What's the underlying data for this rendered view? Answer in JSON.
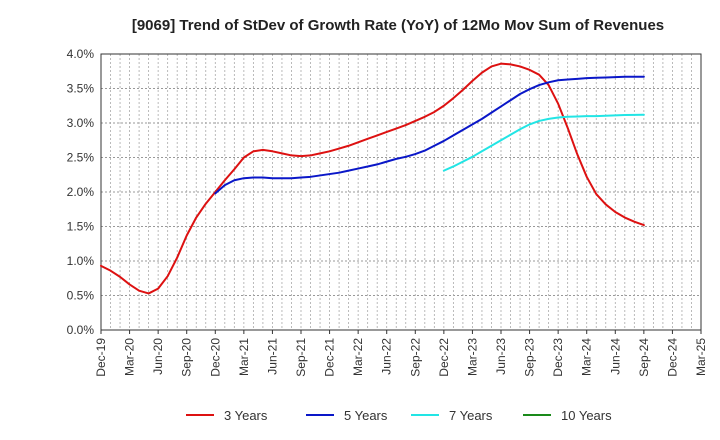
{
  "chart_data": {
    "type": "line",
    "title": "[9069]  Trend of StDev of Growth Rate (YoY) of 12Mo Mov Sum of Revenues",
    "xlabel": "",
    "ylabel": "",
    "x_ticks": [
      "Dec-19",
      "Mar-20",
      "Jun-20",
      "Sep-20",
      "Dec-20",
      "Mar-21",
      "Jun-21",
      "Sep-21",
      "Dec-21",
      "Mar-22",
      "Jun-22",
      "Sep-22",
      "Dec-22",
      "Mar-23",
      "Jun-23",
      "Sep-23",
      "Dec-23",
      "Mar-24",
      "Jun-24",
      "Sep-24",
      "Dec-24",
      "Mar-25"
    ],
    "y_ticks": [
      "0.0%",
      "0.5%",
      "1.0%",
      "1.5%",
      "2.0%",
      "2.5%",
      "3.0%",
      "3.5%",
      "4.0%"
    ],
    "ylim": [
      0,
      4.0
    ],
    "x_range_months": [
      0,
      63
    ],
    "grid": true,
    "legend_position": "bottom",
    "series": [
      {
        "name": "3 Years",
        "color": "#dd1111",
        "points": [
          [
            0,
            0.93
          ],
          [
            1,
            0.86
          ],
          [
            2,
            0.77
          ],
          [
            3,
            0.66
          ],
          [
            4,
            0.57
          ],
          [
            5,
            0.53
          ],
          [
            6,
            0.6
          ],
          [
            7,
            0.78
          ],
          [
            8,
            1.05
          ],
          [
            9,
            1.37
          ],
          [
            10,
            1.63
          ],
          [
            11,
            1.83
          ],
          [
            12,
            2.0
          ],
          [
            13,
            2.17
          ],
          [
            14,
            2.33
          ],
          [
            15,
            2.5
          ],
          [
            16,
            2.59
          ],
          [
            17,
            2.61
          ],
          [
            18,
            2.59
          ],
          [
            19,
            2.56
          ],
          [
            20,
            2.53
          ],
          [
            21,
            2.52
          ],
          [
            22,
            2.53
          ],
          [
            23,
            2.56
          ],
          [
            24,
            2.59
          ],
          [
            25,
            2.63
          ],
          [
            26,
            2.67
          ],
          [
            27,
            2.72
          ],
          [
            28,
            2.77
          ],
          [
            29,
            2.82
          ],
          [
            30,
            2.87
          ],
          [
            31,
            2.92
          ],
          [
            32,
            2.97
          ],
          [
            33,
            3.03
          ],
          [
            34,
            3.09
          ],
          [
            35,
            3.16
          ],
          [
            36,
            3.25
          ],
          [
            37,
            3.36
          ],
          [
            38,
            3.48
          ],
          [
            39,
            3.61
          ],
          [
            40,
            3.73
          ],
          [
            41,
            3.82
          ],
          [
            42,
            3.86
          ],
          [
            43,
            3.85
          ],
          [
            44,
            3.82
          ],
          [
            45,
            3.77
          ],
          [
            46,
            3.7
          ],
          [
            47,
            3.55
          ],
          [
            48,
            3.28
          ],
          [
            49,
            2.93
          ],
          [
            50,
            2.55
          ],
          [
            51,
            2.22
          ],
          [
            52,
            1.97
          ],
          [
            53,
            1.82
          ],
          [
            54,
            1.71
          ],
          [
            55,
            1.63
          ],
          [
            56,
            1.57
          ],
          [
            57,
            1.52
          ]
        ]
      },
      {
        "name": "5 Years",
        "color": "#0a17c8",
        "points": [
          [
            12,
            1.98
          ],
          [
            13,
            2.1
          ],
          [
            14,
            2.17
          ],
          [
            15,
            2.2
          ],
          [
            16,
            2.21
          ],
          [
            17,
            2.21
          ],
          [
            18,
            2.2
          ],
          [
            19,
            2.2
          ],
          [
            20,
            2.2
          ],
          [
            21,
            2.21
          ],
          [
            22,
            2.22
          ],
          [
            23,
            2.24
          ],
          [
            24,
            2.26
          ],
          [
            25,
            2.28
          ],
          [
            26,
            2.31
          ],
          [
            27,
            2.34
          ],
          [
            28,
            2.37
          ],
          [
            29,
            2.4
          ],
          [
            30,
            2.44
          ],
          [
            31,
            2.48
          ],
          [
            32,
            2.51
          ],
          [
            33,
            2.55
          ],
          [
            34,
            2.6
          ],
          [
            35,
            2.67
          ],
          [
            36,
            2.74
          ],
          [
            37,
            2.82
          ],
          [
            38,
            2.9
          ],
          [
            39,
            2.98
          ],
          [
            40,
            3.06
          ],
          [
            41,
            3.15
          ],
          [
            42,
            3.24
          ],
          [
            43,
            3.33
          ],
          [
            44,
            3.42
          ],
          [
            45,
            3.49
          ],
          [
            46,
            3.55
          ],
          [
            47,
            3.59
          ],
          [
            48,
            3.62
          ],
          [
            49,
            3.63
          ],
          [
            50,
            3.64
          ],
          [
            51,
            3.65
          ],
          [
            52,
            3.655
          ],
          [
            53,
            3.66
          ],
          [
            54,
            3.665
          ],
          [
            55,
            3.67
          ],
          [
            57,
            3.67
          ]
        ]
      },
      {
        "name": "7 Years",
        "color": "#22e5e5",
        "points": [
          [
            36,
            2.31
          ],
          [
            37,
            2.37
          ],
          [
            38,
            2.44
          ],
          [
            39,
            2.51
          ],
          [
            40,
            2.59
          ],
          [
            41,
            2.67
          ],
          [
            42,
            2.75
          ],
          [
            43,
            2.83
          ],
          [
            44,
            2.91
          ],
          [
            45,
            2.98
          ],
          [
            46,
            3.03
          ],
          [
            47,
            3.06
          ],
          [
            48,
            3.08
          ],
          [
            49,
            3.09
          ],
          [
            50,
            3.095
          ],
          [
            51,
            3.1
          ],
          [
            52,
            3.1
          ],
          [
            53,
            3.105
          ],
          [
            54,
            3.11
          ],
          [
            55,
            3.115
          ],
          [
            57,
            3.12
          ]
        ]
      },
      {
        "name": "10 Years",
        "color": "#1a8a1a",
        "points": []
      }
    ]
  }
}
